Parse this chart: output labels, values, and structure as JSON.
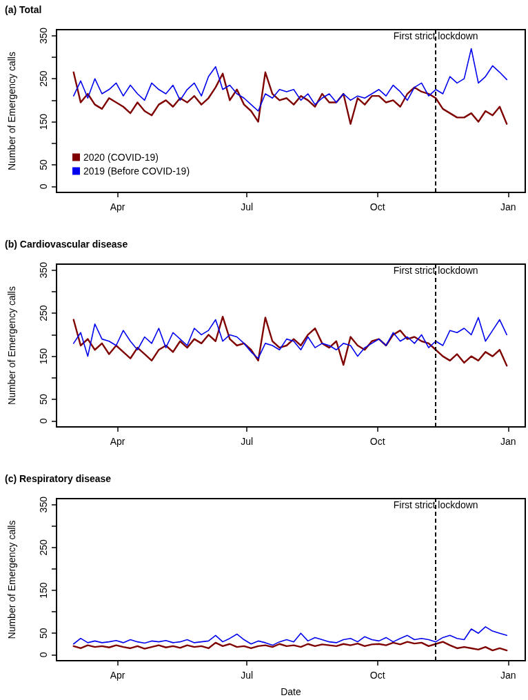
{
  "chart_data": [
    {
      "type": "line",
      "title": "(a) Total",
      "ylabel": "Number of Emergency calls",
      "legend": "bottom left",
      "grid": false,
      "line_style": "solid",
      "marker": "none",
      "xlim": [
        "2020-02-18",
        "2021-01-13"
      ],
      "xticks": [
        {
          "value": "2020-04-01",
          "label": "Apr"
        },
        {
          "value": "2020-07-01",
          "label": "Jul"
        },
        {
          "value": "2020-10-01",
          "label": "Oct"
        },
        {
          "value": "2021-01-01",
          "label": "Jan"
        }
      ],
      "ylim": [
        -14,
        364
      ],
      "yticks": [
        0,
        50,
        {
          "value": 100,
          "label": null
        },
        150,
        {
          "value": 200,
          "label": null
        },
        250,
        {
          "value": 300,
          "label": null
        },
        350
      ],
      "ref_lines": [
        {
          "axis": "x",
          "value": "2020-11-11",
          "label": "First strict lockdown",
          "color": "#000000",
          "line_style": "dashed"
        }
      ],
      "x": [
        "2020-03-01",
        "2020-03-06",
        "2020-03-11",
        "2020-03-16",
        "2020-03-21",
        "2020-03-26",
        "2020-03-31",
        "2020-04-05",
        "2020-04-10",
        "2020-04-15",
        "2020-04-20",
        "2020-04-25",
        "2020-04-30",
        "2020-05-05",
        "2020-05-10",
        "2020-05-15",
        "2020-05-20",
        "2020-05-25",
        "2020-05-30",
        "2020-06-04",
        "2020-06-09",
        "2020-06-14",
        "2020-06-19",
        "2020-06-24",
        "2020-06-29",
        "2020-07-04",
        "2020-07-09",
        "2020-07-14",
        "2020-07-19",
        "2020-07-24",
        "2020-07-29",
        "2020-08-03",
        "2020-08-08",
        "2020-08-13",
        "2020-08-18",
        "2020-08-23",
        "2020-08-28",
        "2020-09-02",
        "2020-09-07",
        "2020-09-12",
        "2020-09-17",
        "2020-09-22",
        "2020-09-27",
        "2020-10-02",
        "2020-10-07",
        "2020-10-12",
        "2020-10-17",
        "2020-10-22",
        "2020-10-27",
        "2020-11-01",
        "2020-11-06",
        "2020-11-11",
        "2020-11-16",
        "2020-11-21",
        "2020-11-26",
        "2020-12-01",
        "2020-12-06",
        "2020-12-11",
        "2020-12-16",
        "2020-12-21",
        "2020-12-26",
        "2020-12-31"
      ],
      "series": [
        {
          "name": "2020 (COVID-19)",
          "color": "#7f0000",
          "values": [
            265,
            195,
            215,
            190,
            180,
            205,
            195,
            185,
            170,
            195,
            175,
            165,
            190,
            200,
            185,
            205,
            195,
            210,
            190,
            205,
            230,
            262,
            200,
            225,
            190,
            175,
            150,
            265,
            215,
            200,
            205,
            190,
            210,
            200,
            185,
            215,
            195,
            195,
            215,
            145,
            205,
            190,
            210,
            210,
            195,
            200,
            185,
            215,
            230,
            220,
            215,
            205,
            180,
            170,
            160,
            160,
            170,
            150,
            175,
            165,
            185,
            145
          ]
        },
        {
          "name": "2019 (Before COVID-19)",
          "color": "#0000ee",
          "values": [
            210,
            245,
            205,
            250,
            215,
            225,
            240,
            210,
            235,
            215,
            200,
            240,
            225,
            215,
            235,
            200,
            225,
            240,
            210,
            255,
            278,
            225,
            235,
            215,
            205,
            190,
            175,
            215,
            205,
            225,
            220,
            225,
            200,
            215,
            190,
            205,
            215,
            195,
            215,
            200,
            210,
            205,
            215,
            225,
            210,
            235,
            220,
            200,
            230,
            240,
            210,
            225,
            215,
            255,
            240,
            250,
            320,
            240,
            255,
            280,
            265,
            248
          ]
        }
      ]
    },
    {
      "type": "line",
      "title": "(b) Cardiovascular disease",
      "ylabel": "Number of Emergency calls",
      "grid": false,
      "line_style": "solid",
      "marker": "none",
      "xlim": [
        "2020-02-18",
        "2021-01-13"
      ],
      "xticks": [
        {
          "value": "2020-04-01",
          "label": "Apr"
        },
        {
          "value": "2020-07-01",
          "label": "Jul"
        },
        {
          "value": "2020-10-01",
          "label": "Oct"
        },
        {
          "value": "2021-01-01",
          "label": "Jan"
        }
      ],
      "ylim": [
        -14,
        364
      ],
      "yticks": [
        0,
        50,
        {
          "value": 100,
          "label": null
        },
        150,
        {
          "value": 200,
          "label": null
        },
        250,
        {
          "value": 300,
          "label": null
        },
        350
      ],
      "ref_lines": [
        {
          "axis": "x",
          "value": "2020-11-11",
          "label": "First strict lockdown",
          "color": "#000000",
          "line_style": "dashed"
        }
      ],
      "x": [
        "2020-03-01",
        "2020-03-06",
        "2020-03-11",
        "2020-03-16",
        "2020-03-21",
        "2020-03-26",
        "2020-03-31",
        "2020-04-05",
        "2020-04-10",
        "2020-04-15",
        "2020-04-20",
        "2020-04-25",
        "2020-04-30",
        "2020-05-05",
        "2020-05-10",
        "2020-05-15",
        "2020-05-20",
        "2020-05-25",
        "2020-05-30",
        "2020-06-04",
        "2020-06-09",
        "2020-06-14",
        "2020-06-19",
        "2020-06-24",
        "2020-06-29",
        "2020-07-04",
        "2020-07-09",
        "2020-07-14",
        "2020-07-19",
        "2020-07-24",
        "2020-07-29",
        "2020-08-03",
        "2020-08-08",
        "2020-08-13",
        "2020-08-18",
        "2020-08-23",
        "2020-08-28",
        "2020-09-02",
        "2020-09-07",
        "2020-09-12",
        "2020-09-17",
        "2020-09-22",
        "2020-09-27",
        "2020-10-02",
        "2020-10-07",
        "2020-10-12",
        "2020-10-17",
        "2020-10-22",
        "2020-10-27",
        "2020-11-01",
        "2020-11-06",
        "2020-11-11",
        "2020-11-16",
        "2020-11-21",
        "2020-11-26",
        "2020-12-01",
        "2020-12-06",
        "2020-12-11",
        "2020-12-16",
        "2020-12-21",
        "2020-12-26",
        "2020-12-31"
      ],
      "series": [
        {
          "color": "#7f0000",
          "values": [
            235,
            175,
            190,
            165,
            180,
            155,
            175,
            160,
            145,
            170,
            155,
            140,
            165,
            175,
            160,
            185,
            170,
            190,
            180,
            200,
            185,
            242,
            190,
            175,
            180,
            165,
            140,
            240,
            185,
            170,
            175,
            190,
            175,
            200,
            215,
            180,
            170,
            185,
            130,
            195,
            175,
            165,
            185,
            190,
            175,
            200,
            210,
            190,
            195,
            185,
            180,
            165,
            150,
            140,
            155,
            135,
            150,
            140,
            160,
            150,
            165,
            128
          ]
        },
        {
          "color": "#0000ee",
          "values": [
            180,
            205,
            150,
            225,
            190,
            185,
            175,
            210,
            185,
            165,
            195,
            180,
            215,
            170,
            205,
            190,
            175,
            215,
            200,
            210,
            235,
            185,
            200,
            195,
            180,
            160,
            145,
            180,
            175,
            165,
            190,
            185,
            165,
            195,
            170,
            180,
            175,
            165,
            180,
            175,
            150,
            170,
            180,
            190,
            175,
            205,
            185,
            195,
            180,
            200,
            170,
            185,
            175,
            210,
            205,
            215,
            200,
            240,
            185,
            210,
            235,
            200
          ]
        }
      ]
    },
    {
      "type": "line",
      "title": "(c) Respiratory disease",
      "xlabel": "Date",
      "ylabel": "Number of Emergency calls",
      "grid": false,
      "line_style": "solid",
      "marker": "none",
      "xlim": [
        "2020-02-18",
        "2021-01-13"
      ],
      "xticks": [
        {
          "value": "2020-04-01",
          "label": "Apr"
        },
        {
          "value": "2020-07-01",
          "label": "Jul"
        },
        {
          "value": "2020-10-01",
          "label": "Oct"
        },
        {
          "value": "2021-01-01",
          "label": "Jan"
        }
      ],
      "ylim": [
        -14,
        364
      ],
      "yticks": [
        0,
        50,
        {
          "value": 100,
          "label": null
        },
        150,
        {
          "value": 200,
          "label": null
        },
        250,
        {
          "value": 300,
          "label": null
        },
        350
      ],
      "ref_lines": [
        {
          "axis": "x",
          "value": "2020-11-11",
          "label": "First strict lockdown",
          "color": "#000000",
          "line_style": "dashed"
        }
      ],
      "x": [
        "2020-03-01",
        "2020-03-06",
        "2020-03-11",
        "2020-03-16",
        "2020-03-21",
        "2020-03-26",
        "2020-03-31",
        "2020-04-05",
        "2020-04-10",
        "2020-04-15",
        "2020-04-20",
        "2020-04-25",
        "2020-04-30",
        "2020-05-05",
        "2020-05-10",
        "2020-05-15",
        "2020-05-20",
        "2020-05-25",
        "2020-05-30",
        "2020-06-04",
        "2020-06-09",
        "2020-06-14",
        "2020-06-19",
        "2020-06-24",
        "2020-06-29",
        "2020-07-04",
        "2020-07-09",
        "2020-07-14",
        "2020-07-19",
        "2020-07-24",
        "2020-07-29",
        "2020-08-03",
        "2020-08-08",
        "2020-08-13",
        "2020-08-18",
        "2020-08-23",
        "2020-08-28",
        "2020-09-02",
        "2020-09-07",
        "2020-09-12",
        "2020-09-17",
        "2020-09-22",
        "2020-09-27",
        "2020-10-02",
        "2020-10-07",
        "2020-10-12",
        "2020-10-17",
        "2020-10-22",
        "2020-10-27",
        "2020-11-01",
        "2020-11-06",
        "2020-11-11",
        "2020-11-16",
        "2020-11-21",
        "2020-11-26",
        "2020-12-01",
        "2020-12-06",
        "2020-12-11",
        "2020-12-16",
        "2020-12-21",
        "2020-12-26",
        "2020-12-31"
      ],
      "series": [
        {
          "color": "#7f0000",
          "values": [
            20,
            15,
            22,
            18,
            20,
            17,
            22,
            18,
            15,
            20,
            14,
            18,
            22,
            17,
            20,
            16,
            22,
            18,
            20,
            15,
            28,
            20,
            25,
            18,
            20,
            15,
            20,
            22,
            18,
            25,
            20,
            22,
            18,
            25,
            20,
            24,
            22,
            20,
            25,
            22,
            26,
            20,
            24,
            25,
            22,
            28,
            24,
            30,
            26,
            28,
            20,
            25,
            30,
            22,
            15,
            18,
            15,
            12,
            18,
            10,
            15,
            10
          ]
        },
        {
          "color": "#0000ee",
          "values": [
            25,
            38,
            28,
            32,
            28,
            30,
            33,
            28,
            35,
            30,
            27,
            32,
            30,
            33,
            28,
            30,
            35,
            28,
            30,
            32,
            45,
            30,
            38,
            48,
            35,
            25,
            32,
            28,
            22,
            30,
            35,
            30,
            50,
            32,
            40,
            35,
            30,
            28,
            35,
            38,
            30,
            42,
            35,
            32,
            40,
            30,
            38,
            45,
            35,
            38,
            35,
            30,
            40,
            45,
            38,
            35,
            60,
            50,
            65,
            55,
            50,
            45
          ]
        }
      ]
    }
  ]
}
